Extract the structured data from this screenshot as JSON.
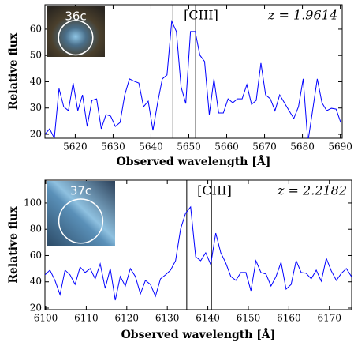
{
  "chart_data": [
    {
      "type": "line",
      "color": "#0000ff",
      "inset_label": "36c",
      "annotation": "[CIII]",
      "redshift": "z = 1.9614",
      "xlabel": "Observed wavelength [Å]",
      "ylabel": "Relative flux",
      "xlim": [
        5612,
        5690.5
      ],
      "ylim": [
        18.5,
        69.3
      ],
      "xticks": [
        5620,
        5630,
        5640,
        5650,
        5660,
        5670,
        5680,
        5690
      ],
      "yticks": [
        20,
        30,
        40,
        50,
        60
      ],
      "vlines": [
        5645.8,
        5651.8
      ],
      "x": [
        5612,
        5613.24,
        5614.48,
        5615.72,
        5616.96,
        5618.2,
        5619.44,
        5620.68,
        5621.92,
        5623.16,
        5624.4,
        5625.64,
        5626.88,
        5628.12,
        5629.36,
        5630.6,
        5631.84,
        5633.08,
        5634.32,
        5635.56,
        5636.8,
        5638.04,
        5639.28,
        5640.52,
        5641.76,
        5643,
        5644.24,
        5645.48,
        5646.72,
        5647.96,
        5649.2,
        5650.44,
        5651.68,
        5652.92,
        5654.16,
        5655.4,
        5656.64,
        5657.88,
        5659.12,
        5660.36,
        5661.6,
        5662.84,
        5664.08,
        5665.32,
        5666.56,
        5667.8,
        5669.04,
        5670.28,
        5671.52,
        5672.76,
        5674,
        5675.24,
        5676.48,
        5677.72,
        5678.96,
        5680.2,
        5681.44,
        5682.68,
        5683.92,
        5685.16,
        5686.4,
        5687.64,
        5688.88,
        5690.12
      ],
      "values": [
        20.0,
        22.1,
        18.5,
        37.4,
        30.5,
        29.0,
        39.5,
        29.0,
        35.0,
        23.0,
        32.9,
        33.5,
        22.1,
        27.5,
        26.9,
        23.0,
        24.5,
        35.0,
        41.1,
        40.2,
        39.5,
        30.5,
        32.6,
        21.5,
        32.0,
        41.1,
        42.6,
        63.0,
        59.1,
        38.0,
        31.7,
        59.1,
        59.1,
        50.1,
        47.7,
        27.5,
        41.1,
        28.1,
        28.1,
        33.5,
        32.0,
        33.5,
        33.5,
        38.9,
        31.4,
        32.9,
        47.1,
        35.0,
        33.5,
        29.0,
        35.0,
        32.0,
        29.0,
        26.0,
        30.5,
        41.1,
        17.0,
        29.0,
        41.1,
        32.0,
        29.0,
        29.9,
        29.6,
        24.5
      ]
    },
    {
      "type": "line",
      "color": "#0000ff",
      "inset_label": "37c",
      "annotation": "[CIII]",
      "redshift": "z = 2.2182",
      "xlabel": "Observed wavelength [Å]",
      "ylabel": "Relative flux",
      "xlim": [
        6099.8,
        6175.5
      ],
      "ylim": [
        18.8,
        117.4
      ],
      "xticks": [
        6100,
        6110,
        6120,
        6130,
        6140,
        6150,
        6160,
        6170
      ],
      "yticks": [
        20,
        40,
        60,
        80,
        100
      ],
      "vlines": [
        6134.8,
        6140.9
      ],
      "x": [
        6099.8,
        6101.04,
        6102.28,
        6103.52,
        6104.76,
        6106,
        6107.24,
        6108.48,
        6109.72,
        6110.96,
        6112.2,
        6113.44,
        6114.68,
        6115.92,
        6117.16,
        6118.4,
        6119.64,
        6120.88,
        6122.12,
        6123.36,
        6124.6,
        6125.84,
        6127.08,
        6128.32,
        6129.56,
        6130.8,
        6132.04,
        6133.28,
        6134.52,
        6135.76,
        6137,
        6138.24,
        6139.48,
        6140.72,
        6141.96,
        6143.2,
        6144.44,
        6145.68,
        6146.92,
        6148.16,
        6149.4,
        6150.64,
        6151.88,
        6153.12,
        6154.36,
        6155.6,
        6156.84,
        6158.08,
        6159.32,
        6160.56,
        6161.8,
        6163.04,
        6164.28,
        6165.52,
        6166.76,
        6168,
        6169.24,
        6170.48,
        6171.72,
        6172.96,
        6174.2,
        6175.44
      ],
      "values": [
        45.3,
        48.9,
        41.1,
        30.2,
        48.9,
        45.3,
        38.0,
        51.3,
        47.1,
        50.1,
        42.3,
        53.7,
        35.0,
        50.1,
        26.0,
        44.1,
        36.8,
        50.1,
        44.1,
        30.8,
        41.1,
        38.0,
        29.0,
        42.3,
        45.3,
        48.9,
        56.1,
        80.2,
        92.2,
        97.0,
        59.1,
        56.1,
        62.1,
        53.1,
        77.1,
        62.1,
        54.3,
        44.1,
        41.1,
        47.1,
        47.1,
        33.2,
        56.1,
        47.1,
        45.9,
        36.8,
        44.1,
        54.9,
        34.4,
        38.0,
        56.1,
        47.1,
        46.5,
        42.3,
        48.9,
        40.5,
        57.9,
        48.3,
        41.1,
        46.5,
        50.1,
        44.1
      ]
    }
  ]
}
